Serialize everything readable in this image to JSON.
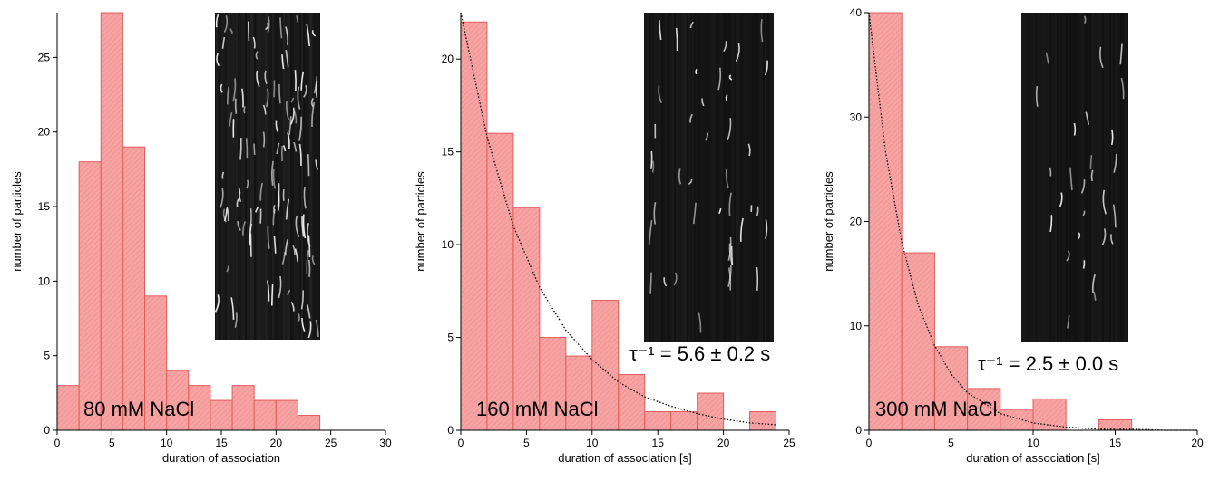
{
  "chart_data": [
    {
      "type": "histogram",
      "color": "#f6a3a3",
      "edge_color": "#e25c5c",
      "x_label": "duration of association",
      "y_label": "number of particles",
      "bins": [
        0,
        2,
        4,
        6,
        8,
        10,
        12,
        14,
        16,
        18,
        20,
        22,
        24
      ],
      "values": [
        3,
        18,
        28,
        19,
        9,
        4,
        3,
        2,
        3,
        2,
        2,
        1
      ],
      "xlim": [
        0,
        30
      ],
      "xticks": [
        0,
        5,
        10,
        15,
        20,
        25,
        30
      ],
      "ylim": [
        0,
        28
      ],
      "yticks": [
        0,
        5,
        10,
        15,
        20,
        25
      ],
      "annotations": [
        "80 mM NaCl"
      ]
    },
    {
      "type": "histogram",
      "color": "#f6a3a3",
      "edge_color": "#e25c5c",
      "x_label": "duration of association [s]",
      "y_label": "number of particles",
      "bins": [
        0,
        2,
        4,
        6,
        8,
        10,
        12,
        14,
        16,
        18,
        20,
        22,
        24
      ],
      "values": [
        22,
        16,
        12,
        5,
        4,
        7,
        3,
        1,
        1,
        2,
        0,
        1
      ],
      "xlim": [
        0,
        25
      ],
      "xticks": [
        0,
        5,
        10,
        15,
        20,
        25
      ],
      "ylim": [
        0,
        22.5
      ],
      "yticks": [
        0,
        5,
        10,
        15,
        20
      ],
      "fit": {
        "x": [
          0,
          2,
          4,
          6,
          8,
          10,
          12,
          14,
          16,
          18,
          20,
          22,
          24
        ],
        "y": [
          22.5,
          15.8,
          11.0,
          7.7,
          5.4,
          3.8,
          2.6,
          1.8,
          1.3,
          0.9,
          0.6,
          0.4,
          0.3
        ]
      },
      "annotations": [
        "160 mM NaCl",
        "τ⁻¹ = 5.6 ± 0.2 s"
      ]
    },
    {
      "type": "histogram",
      "color": "#f6a3a3",
      "edge_color": "#e25c5c",
      "x_label": "duration of association [s]",
      "y_label": "number of particles",
      "bins": [
        0,
        2,
        4,
        6,
        8,
        10,
        12,
        14,
        16
      ],
      "values": [
        40,
        17,
        8,
        4,
        2,
        3,
        0,
        1
      ],
      "xlim": [
        0,
        20
      ],
      "xticks": [
        0,
        5,
        10,
        15,
        20
      ],
      "ylim": [
        0,
        40
      ],
      "yticks": [
        0,
        10,
        20,
        30,
        40
      ],
      "fit": {
        "x": [
          0,
          1,
          2,
          3,
          4,
          5,
          6,
          8,
          10,
          12,
          14,
          16,
          18,
          20
        ],
        "y": [
          40,
          26.8,
          18.0,
          12.0,
          8.1,
          5.4,
          3.6,
          1.6,
          0.7,
          0.3,
          0.1,
          0.1,
          0.0,
          0.0
        ]
      },
      "annotations": [
        "300 mM NaCl",
        "τ⁻¹ = 2.5 ± 0.0 s"
      ]
    }
  ]
}
